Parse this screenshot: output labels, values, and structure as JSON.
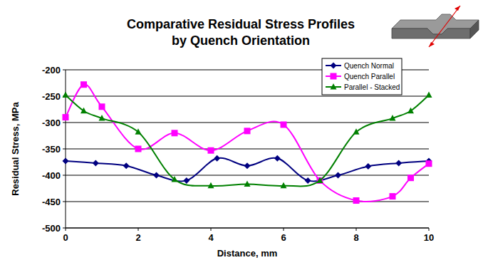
{
  "chart_data": {
    "type": "line",
    "title": "Comparative Residual Stress Profiles\nby Quench Orientation",
    "x_label": "Distance, mm",
    "y_label": "Residual Stress, MPa",
    "xlim": [
      0,
      10
    ],
    "xticks": [
      0,
      2,
      4,
      6,
      8,
      10
    ],
    "ylim": [
      -500,
      -200
    ],
    "yticks": [
      -500,
      -450,
      -400,
      -350,
      -300,
      -250,
      -200
    ],
    "grid": true,
    "legend": "upper right",
    "series": [
      {
        "name": "Quench Normal",
        "color": "#000080",
        "marker": "diamond",
        "line_style": "smooth",
        "x": [
          0,
          0.83,
          1.67,
          2.5,
          3.33,
          4.17,
          5,
          5.83,
          6.67,
          7.5,
          8.33,
          9.17,
          10
        ],
        "values": [
          -373,
          -377,
          -382,
          -400,
          -410,
          -368,
          -382,
          -368,
          -410,
          -400,
          -383,
          -377,
          -373
        ]
      },
      {
        "name": "Quench Parallel",
        "color": "#ff00ff",
        "marker": "square",
        "line_style": "smooth",
        "x": [
          0,
          0.5,
          1,
          2,
          3,
          4,
          5,
          6,
          7,
          8,
          9,
          9.5,
          10
        ],
        "values": [
          -290,
          -228,
          -270,
          -350,
          -320,
          -353,
          -316,
          -304,
          -410,
          -448,
          -440,
          -405,
          -378
        ]
      },
      {
        "name": "Parallel - Stacked",
        "color": "#008000",
        "marker": "triangle",
        "line_style": "smooth",
        "x": [
          0,
          0.5,
          1,
          2,
          3,
          4,
          5,
          6,
          7,
          8,
          9,
          9.5,
          10
        ],
        "values": [
          -248,
          -278,
          -292,
          -318,
          -408,
          -420,
          -417,
          -420,
          -410,
          -318,
          -292,
          -278,
          -248
        ]
      }
    ]
  }
}
